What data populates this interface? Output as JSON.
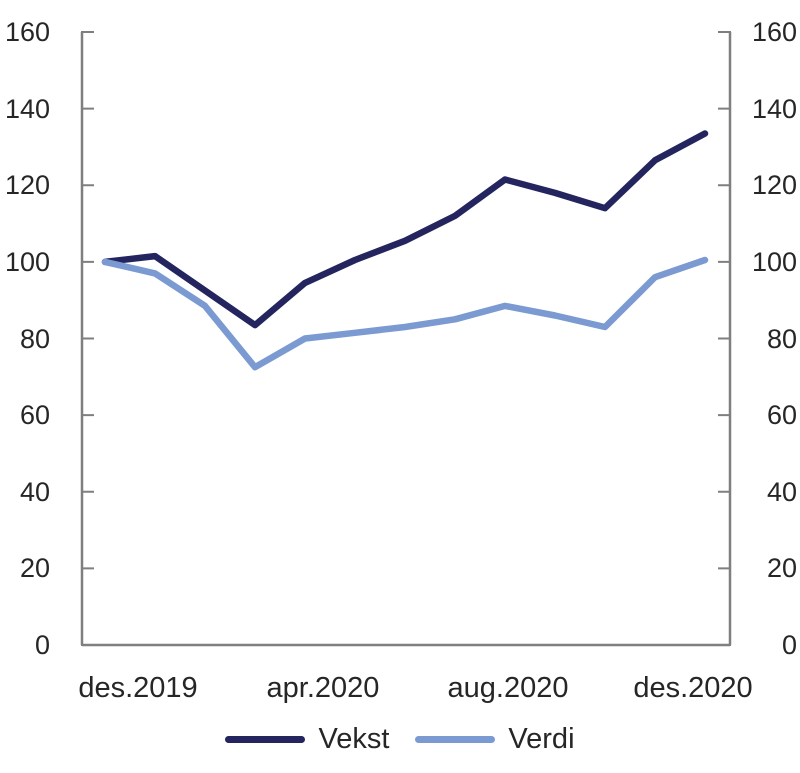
{
  "chart_data": {
    "type": "line",
    "title": "",
    "xlabel": "",
    "ylabel": "",
    "n_points": 13,
    "x_tick_labels": [
      "des.2019",
      "apr.2020",
      "aug.2020",
      "des.2020"
    ],
    "x_tick_indices": [
      0,
      4,
      8,
      12
    ],
    "y_ticks": [
      0,
      20,
      40,
      60,
      80,
      100,
      120,
      140,
      160
    ],
    "ylim": [
      0,
      160
    ],
    "y_axis_sides": [
      "left",
      "right"
    ],
    "grid": false,
    "legend_position": "bottom-center",
    "series": [
      {
        "name": "Vekst",
        "color": "#24245F",
        "values": [
          100,
          101.5,
          92.5,
          83.5,
          94.5,
          100.5,
          105.5,
          112,
          121.5,
          118,
          114,
          126.5,
          133.5
        ]
      },
      {
        "name": "Verdi",
        "color": "#7B9AD2",
        "values": [
          100,
          97,
          88.5,
          72.5,
          80,
          81.5,
          83,
          85,
          88.5,
          86,
          83,
          96,
          100.5
        ]
      }
    ]
  },
  "colors": {
    "axis": "#7F7F7F",
    "text": "#262626",
    "background": "#FFFFFF"
  }
}
